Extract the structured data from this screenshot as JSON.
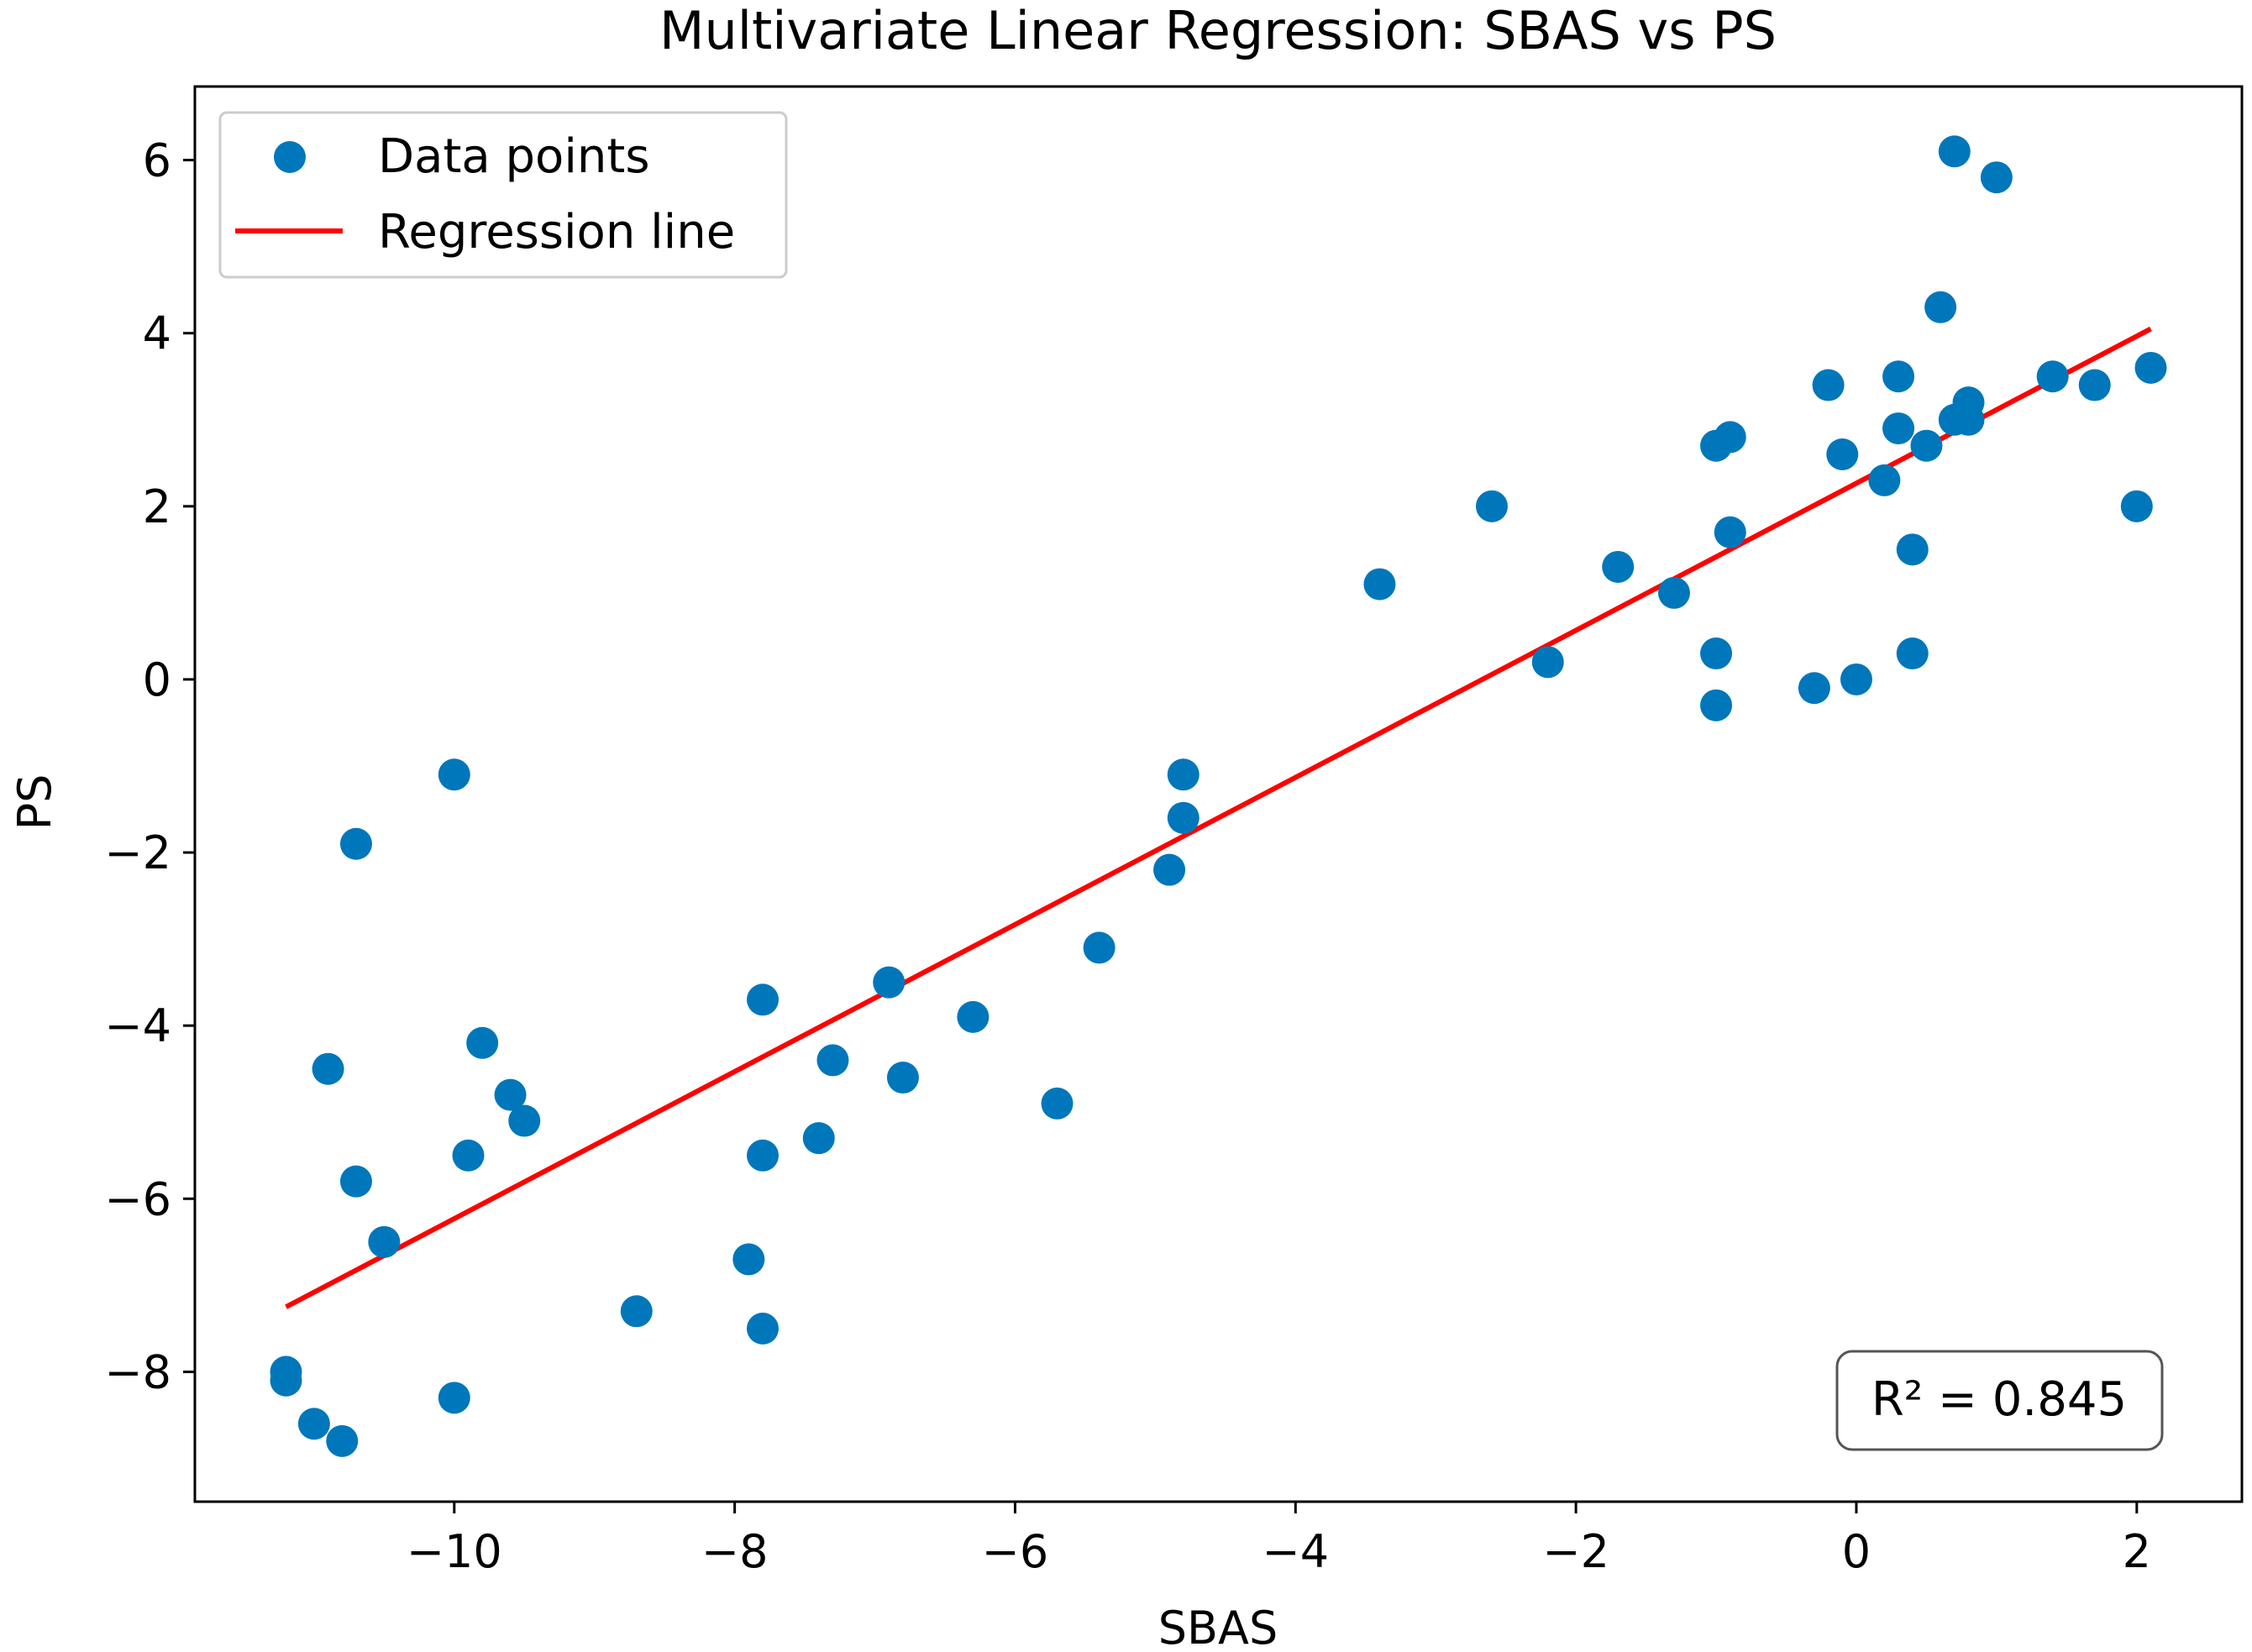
{
  "chart_data": {
    "type": "scatter",
    "title": "Multivariate Linear Regression: SBAS vs PS",
    "xlabel": "SBAS",
    "ylabel": "PS",
    "xlim": [
      -11.85,
      2.75
    ],
    "ylim": [
      -9.5,
      6.85
    ],
    "xticks": [
      -10,
      -8,
      -6,
      -4,
      -2,
      0,
      2
    ],
    "yticks": [
      -8,
      -6,
      -4,
      -2,
      0,
      2,
      4,
      6
    ],
    "grid": false,
    "legend": {
      "position": "top-left",
      "entries": [
        {
          "label": "Data points",
          "kind": "marker",
          "color": "#1f77b4"
        },
        {
          "label": "Regression line",
          "kind": "line",
          "color": "#ff0000"
        }
      ]
    },
    "series": [
      {
        "name": "Data points",
        "kind": "scatter",
        "color": "#0077bb",
        "points": [
          [
            -11.2,
            -8.0
          ],
          [
            -11.2,
            -8.1
          ],
          [
            -11.0,
            -8.6
          ],
          [
            -10.8,
            -8.8
          ],
          [
            -10.9,
            -4.5
          ],
          [
            -10.7,
            -1.9
          ],
          [
            -10.7,
            -5.8
          ],
          [
            -10.5,
            -6.5
          ],
          [
            -10.0,
            -1.1
          ],
          [
            -10.0,
            -8.3
          ],
          [
            -9.9,
            -5.5
          ],
          [
            -9.8,
            -4.2
          ],
          [
            -9.6,
            -4.8
          ],
          [
            -9.5,
            -5.1
          ],
          [
            -8.7,
            -7.3
          ],
          [
            -7.9,
            -6.7
          ],
          [
            -7.8,
            -3.7
          ],
          [
            -7.8,
            -5.5
          ],
          [
            -7.8,
            -7.5
          ],
          [
            -7.4,
            -5.3
          ],
          [
            -7.3,
            -4.4
          ],
          [
            -6.9,
            -3.5
          ],
          [
            -6.8,
            -4.6
          ],
          [
            -6.3,
            -3.9
          ],
          [
            -5.7,
            -4.9
          ],
          [
            -5.4,
            -3.1
          ],
          [
            -4.9,
            -2.2
          ],
          [
            -4.8,
            -1.1
          ],
          [
            -4.8,
            -1.6
          ],
          [
            -3.4,
            1.1
          ],
          [
            -2.6,
            2.0
          ],
          [
            -2.2,
            0.2
          ],
          [
            -1.7,
            1.3
          ],
          [
            -1.3,
            1.0
          ],
          [
            -1.0,
            0.3
          ],
          [
            -1.0,
            -0.3
          ],
          [
            -1.0,
            2.7
          ],
          [
            -0.9,
            2.8
          ],
          [
            -0.9,
            1.7
          ],
          [
            -0.3,
            -0.1
          ],
          [
            -0.2,
            3.4
          ],
          [
            -0.1,
            2.6
          ],
          [
            0.0,
            0.0
          ],
          [
            0.2,
            2.3
          ],
          [
            0.3,
            3.5
          ],
          [
            0.3,
            2.9
          ],
          [
            0.4,
            1.5
          ],
          [
            0.4,
            0.3
          ],
          [
            0.5,
            2.7
          ],
          [
            0.6,
            4.3
          ],
          [
            0.7,
            3.0
          ],
          [
            0.7,
            6.1
          ],
          [
            0.8,
            3.0
          ],
          [
            0.8,
            3.2
          ],
          [
            1.0,
            5.8
          ],
          [
            1.4,
            3.5
          ],
          [
            1.7,
            3.4
          ],
          [
            2.0,
            2.0
          ],
          [
            2.1,
            3.6
          ]
        ]
      },
      {
        "name": "Regression line",
        "kind": "line",
        "color": "#ff0000",
        "points": [
          [
            -11.2,
            -7.25
          ],
          [
            2.1,
            4.05
          ]
        ]
      }
    ],
    "annotations": [
      {
        "text": "R² = 0.845",
        "position": "bottom-right",
        "boxed": true
      }
    ]
  }
}
